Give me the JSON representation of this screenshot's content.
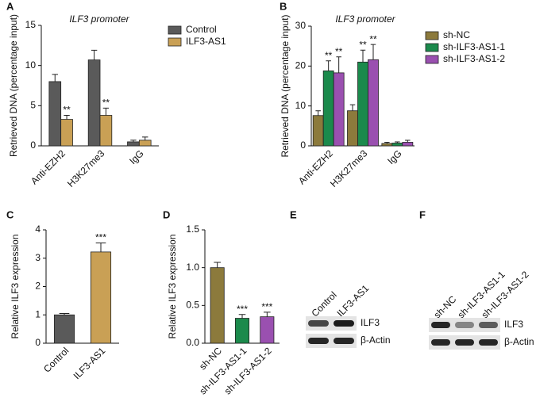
{
  "chart_data": [
    {
      "type": "bar",
      "panel_label": "A",
      "title": "ILF3 promoter",
      "y_label": "Retrieved DNA (percentage input)",
      "categories": [
        "Anti-EZH2",
        "H3K27me3",
        "IgG"
      ],
      "ylim": [
        0,
        15
      ],
      "yticks": [
        0,
        5,
        10,
        15
      ],
      "series": [
        {
          "name": "Control",
          "color": "#5a5a5a",
          "values": [
            8.0,
            10.7,
            0.5
          ],
          "errors": [
            0.9,
            1.2,
            0.2
          ],
          "significance": [
            null,
            null,
            null
          ]
        },
        {
          "name": "ILF3-AS1",
          "color": "#c9a055",
          "values": [
            3.3,
            3.8,
            0.7
          ],
          "errors": [
            0.5,
            0.9,
            0.4
          ],
          "significance": [
            "**",
            "**",
            null
          ]
        }
      ]
    },
    {
      "type": "bar",
      "panel_label": "B",
      "title": "ILF3 promoter",
      "y_label": "Retrieved DNA (percentage input)",
      "categories": [
        "Anti-EZH2",
        "H3K27me3",
        "IgG"
      ],
      "ylim": [
        0,
        30
      ],
      "yticks": [
        0,
        10,
        20,
        30
      ],
      "series": [
        {
          "name": "sh-NC",
          "color": "#8c7a3c",
          "values": [
            7.6,
            8.8,
            0.6
          ],
          "errors": [
            1.2,
            1.5,
            0.3
          ],
          "significance": [
            null,
            null,
            null
          ]
        },
        {
          "name": "sh-ILF3-AS1-1",
          "color": "#1b8a4c",
          "values": [
            18.8,
            21.0,
            0.7
          ],
          "errors": [
            2.5,
            3.0,
            0.3
          ],
          "significance": [
            "**",
            "**",
            null
          ]
        },
        {
          "name": "sh-ILF3-AS1-2",
          "color": "#9a50b0",
          "values": [
            18.3,
            21.6,
            0.9
          ],
          "errors": [
            4.0,
            3.8,
            0.5
          ],
          "significance": [
            "**",
            "**",
            null
          ]
        }
      ]
    },
    {
      "type": "bar",
      "panel_label": "C",
      "y_label": "Relative ILF3 expression",
      "categories": [
        "Control",
        "ILF3-AS1"
      ],
      "ylim": [
        0,
        4
      ],
      "yticks": [
        0,
        1,
        2,
        3,
        4
      ],
      "values": [
        1.0,
        3.22
      ],
      "errors": [
        0.05,
        0.32
      ],
      "colors": [
        "#5a5a5a",
        "#c9a055"
      ],
      "significance": [
        null,
        "***"
      ]
    },
    {
      "type": "bar",
      "panel_label": "D",
      "y_label": "Relative ILF3 expression",
      "categories": [
        "sh-NC",
        "sh-ILF3-AS1-1",
        "sh-ILF3-AS1-2"
      ],
      "ylim": [
        0,
        1.5
      ],
      "yticks": [
        {
          "value": 0,
          "label": "0.0"
        },
        0.5,
        {
          "value": 1,
          "label": "1.0"
        },
        1.5
      ],
      "values": [
        1.0,
        0.33,
        0.35
      ],
      "errors": [
        0.07,
        0.05,
        0.06
      ],
      "colors": [
        "#8c7a3c",
        "#1b8a4c",
        "#9a50b0"
      ],
      "significance": [
        null,
        "***",
        "***"
      ]
    }
  ],
  "blots": [
    {
      "panel_label": "E",
      "lanes": [
        "Control",
        "ILF3-AS1"
      ],
      "bands": [
        "ILF3",
        "β-Actin"
      ]
    },
    {
      "panel_label": "F",
      "lanes": [
        "sh-NC",
        "sh-ILF3-AS1-1",
        "sh-ILF3-AS1-2"
      ],
      "bands": [
        "ILF3",
        "β-Actin"
      ]
    }
  ]
}
